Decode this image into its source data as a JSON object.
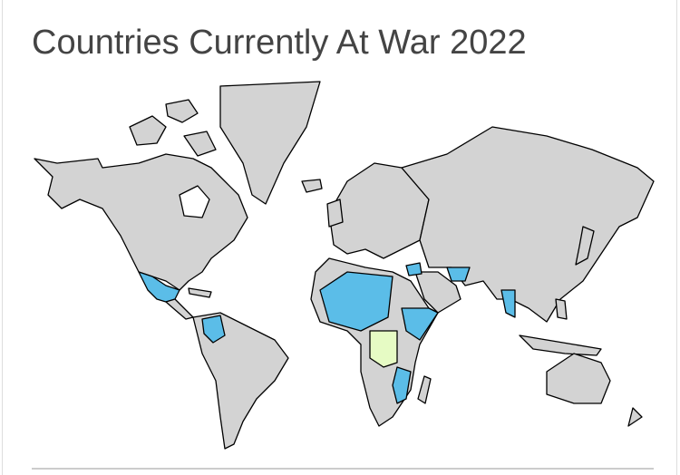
{
  "title": "Countries Currently At War 2022"
}
